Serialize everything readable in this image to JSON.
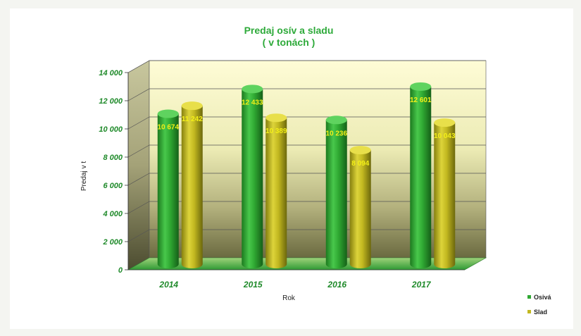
{
  "chart_data": {
    "type": "bar",
    "title": "Predaj osív a sladu",
    "subtitle": "( v tonách )",
    "xlabel": "Rok",
    "ylabel": "Predaj v t",
    "categories": [
      "2014",
      "2015",
      "2016",
      "2017"
    ],
    "yticks": [
      "0",
      "2 000",
      "4 000",
      "6 000",
      "8 000",
      "10 000",
      "12 000",
      "14 000"
    ],
    "ylim": [
      0,
      14000
    ],
    "grid": true,
    "legend": "right",
    "series": [
      {
        "name": "Osivá",
        "color": "#2fa832",
        "values": [
          10674,
          12433,
          10236,
          12601
        ],
        "labels": [
          "10 674",
          "12 433",
          "10 236",
          "12 601"
        ]
      },
      {
        "name": "Slad",
        "color": "#c2b820",
        "values": [
          11242,
          10389,
          8094,
          10043
        ],
        "labels": [
          "11 242",
          "10 389",
          "8 094",
          "10 043"
        ]
      }
    ]
  }
}
